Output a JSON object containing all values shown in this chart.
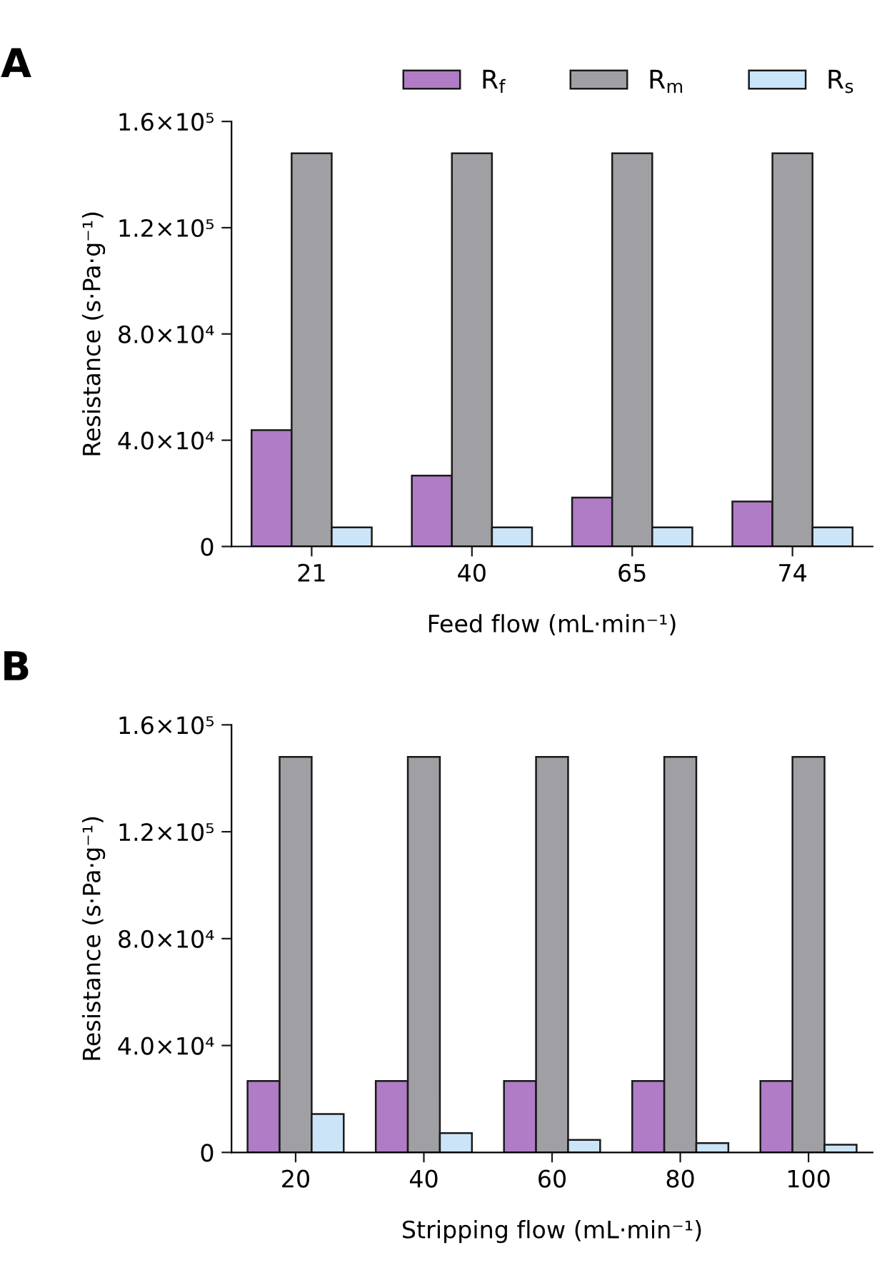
{
  "chart_data": [
    {
      "type": "bar",
      "title": "A",
      "xlabel": "Feed flow (mL·min⁻¹)",
      "ylabel": "Resistance (s·Pa·g⁻¹)",
      "categories": [
        "21",
        "40",
        "65",
        "74"
      ],
      "series": [
        {
          "name": "R$_{f}$",
          "color": "#b07cc6",
          "values": [
            43800,
            26700,
            18400,
            16900
          ]
        },
        {
          "name": "R$_{m}$",
          "color": "#a0a0a4",
          "values": [
            148000,
            148000,
            148000,
            148000
          ]
        },
        {
          "name": "R$_{s}$",
          "color": "#cce4f7",
          "values": [
            7200,
            7200,
            7200,
            7200
          ]
        }
      ],
      "ylim": [
        0,
        160000
      ],
      "yticks": [
        0,
        {
          "value": 40000,
          "label": "4.0×10⁴"
        },
        {
          "value": 80000,
          "label": "8.0×10⁴"
        },
        {
          "value": 120000,
          "label": "1.2×10⁵"
        },
        {
          "value": 160000,
          "label": "1.6×10⁵"
        }
      ],
      "legend": "top",
      "grid": false
    },
    {
      "type": "bar",
      "title": "B",
      "xlabel": "Stripping flow (mL·min⁻¹)",
      "ylabel": "Resistance (s·Pa·g⁻¹)",
      "categories": [
        "20",
        "40",
        "60",
        "80",
        "100"
      ],
      "series": [
        {
          "color": "#b07cc6",
          "values": [
            26700,
            26700,
            26700,
            26700,
            26700
          ]
        },
        {
          "color": "#a0a0a4",
          "values": [
            148000,
            148000,
            148000,
            148000,
            148000
          ]
        },
        {
          "color": "#cce4f7",
          "values": [
            14400,
            7200,
            4700,
            3500,
            2900
          ]
        }
      ],
      "ylim": [
        0,
        160000
      ],
      "yticks": [
        0,
        {
          "value": 40000,
          "label": "4.0×10⁴"
        },
        {
          "value": 80000,
          "label": "8.0×10⁴"
        },
        {
          "value": 120000,
          "label": "1.2×10⁵"
        },
        {
          "value": 160000,
          "label": "1.6×10⁵"
        }
      ],
      "legend": false,
      "grid": false
    }
  ]
}
